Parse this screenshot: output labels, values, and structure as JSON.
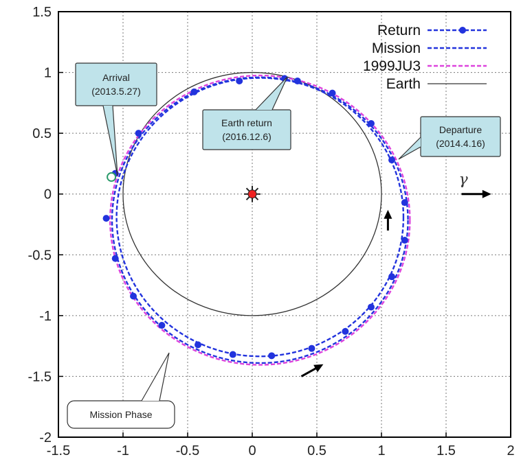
{
  "chart_data": {
    "type": "line",
    "title": "",
    "xlabel": "",
    "ylabel": "",
    "xlim": [
      -1.5,
      2
    ],
    "ylim": [
      -2,
      1.5
    ],
    "xticks": [
      -1.5,
      -1,
      -0.5,
      0,
      0.5,
      1,
      1.5,
      2
    ],
    "yticks": [
      -2,
      -1.5,
      -1,
      -0.5,
      0,
      0.5,
      1,
      1.5
    ],
    "xtick_labels": [
      "-1.5",
      "-1",
      "-0.5",
      "0",
      "0.5",
      "1",
      "1.5",
      "2"
    ],
    "ytick_labels": [
      "-2",
      "-1.5",
      "-1",
      "-0.5",
      "0",
      "0.5",
      "1",
      "1.5"
    ],
    "grid": true,
    "legend_position": "top-right",
    "series": [
      {
        "name": "Return",
        "color": "#2233dd",
        "style": "dashed-with-markers",
        "orbit": {
          "cx": 0.06,
          "cy": -0.19,
          "rx": 1.11,
          "ry": 1.145
        }
      },
      {
        "name": "Mission",
        "color": "#2233dd",
        "style": "dashed",
        "orbit": {
          "cx": 0.06,
          "cy": -0.215,
          "rx": 1.145,
          "ry": 1.175
        }
      },
      {
        "name": "1999JU3",
        "color": "#dd44dd",
        "style": "dashed",
        "orbit": {
          "cx": 0.06,
          "cy": -0.215,
          "rx": 1.16,
          "ry": 1.19
        }
      },
      {
        "name": "Earth",
        "color": "#333333",
        "style": "solid",
        "orbit": {
          "cx": 0,
          "cy": 0,
          "rx": 1.0,
          "ry": 1.0
        }
      }
    ],
    "return_markers": [
      [
        0.25,
        0.95
      ],
      [
        -0.1,
        0.93
      ],
      [
        -0.45,
        0.84
      ],
      [
        -0.88,
        0.5
      ],
      [
        -1.06,
        0.17
      ],
      [
        -1.13,
        -0.2
      ],
      [
        -1.06,
        -0.53
      ],
      [
        -0.92,
        -0.84
      ],
      [
        -0.7,
        -1.08
      ],
      [
        -0.42,
        -1.24
      ],
      [
        -0.15,
        -1.32
      ],
      [
        0.15,
        -1.33
      ],
      [
        0.46,
        -1.27
      ],
      [
        0.72,
        -1.13
      ],
      [
        0.92,
        -0.93
      ],
      [
        1.08,
        -0.68
      ],
      [
        1.18,
        -0.38
      ],
      [
        1.18,
        -0.07
      ],
      [
        1.08,
        0.28
      ],
      [
        0.92,
        0.58
      ],
      [
        0.62,
        0.83
      ],
      [
        0.35,
        0.93
      ]
    ],
    "sun": {
      "x": 0,
      "y": 0,
      "color": "#ee2222"
    },
    "arrival_point": {
      "x": -1.09,
      "y": 0.14
    },
    "callouts": [
      {
        "id": "arrival",
        "lines": [
          "Arrival",
          "(2013.5.27)"
        ],
        "fill": "#bfe3ea"
      },
      {
        "id": "earth-return",
        "lines": [
          "Earth return",
          "(2016.12.6)"
        ],
        "fill": "#bfe3ea"
      },
      {
        "id": "departure",
        "lines": [
          "Departure",
          "(2014.4.16)"
        ],
        "fill": "#bfe3ea"
      },
      {
        "id": "mission-phase",
        "lines": [
          "Mission Phase"
        ],
        "fill": "#ffffff"
      }
    ],
    "direction_symbol": "γ",
    "direction_arrows": [
      {
        "from": [
          1.05,
          -0.3
        ],
        "to": [
          1.05,
          -0.13
        ]
      },
      {
        "from": [
          0.38,
          -1.5
        ],
        "to": [
          0.55,
          -1.4
        ]
      },
      {
        "from": [
          1.62,
          0
        ],
        "to": [
          1.85,
          0
        ]
      }
    ]
  }
}
